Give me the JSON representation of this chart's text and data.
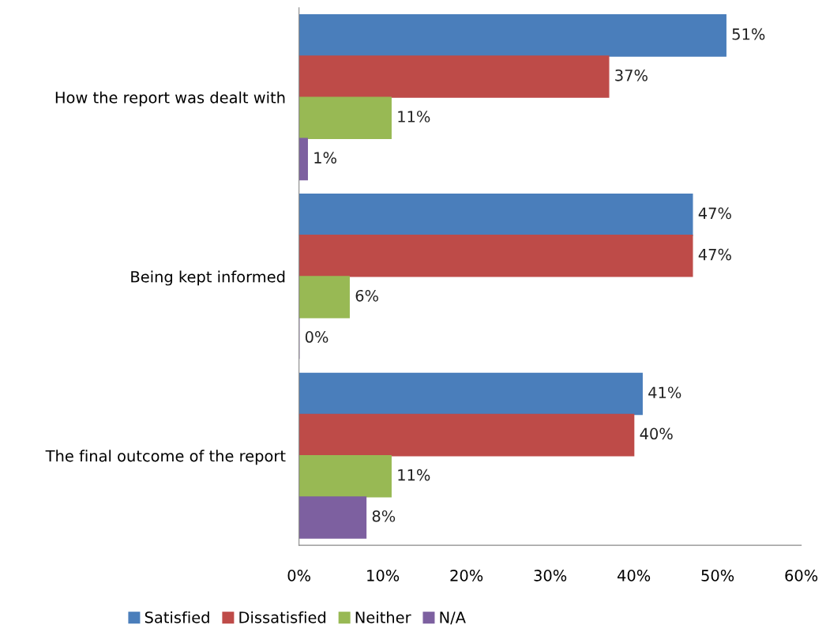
{
  "chart_data": {
    "type": "bar",
    "orientation": "horizontal",
    "categories": [
      "How the report was dealt with",
      "Being kept informed",
      "The final outcome of the report"
    ],
    "series": [
      {
        "name": "Satisfied",
        "color": "#4a7ebb",
        "values": [
          51,
          47,
          41
        ],
        "value_labels": [
          "51%",
          "47%",
          "41%"
        ]
      },
      {
        "name": "Dissatisfied",
        "color": "#be4b48",
        "values": [
          37,
          47,
          40
        ],
        "value_labels": [
          "37%",
          "47%",
          "40%"
        ]
      },
      {
        "name": "Neither",
        "color": "#98b954",
        "values": [
          11,
          6,
          11
        ],
        "value_labels": [
          "11%",
          "6%",
          "11%"
        ]
      },
      {
        "name": "N/A",
        "color": "#7d60a0",
        "values": [
          1,
          0,
          8
        ],
        "value_labels": [
          "1%",
          "0%",
          "8%"
        ]
      }
    ],
    "xlim": [
      0,
      60
    ],
    "xticks": [
      {
        "value": 0,
        "label": "0%"
      },
      {
        "value": 10,
        "label": "10%"
      },
      {
        "value": 20,
        "label": "20%"
      },
      {
        "value": 30,
        "label": "30%"
      },
      {
        "value": 40,
        "label": "40%"
      },
      {
        "value": 50,
        "label": "50%"
      },
      {
        "value": 60,
        "label": "60%"
      }
    ],
    "grid": false,
    "legend": "bottom"
  }
}
